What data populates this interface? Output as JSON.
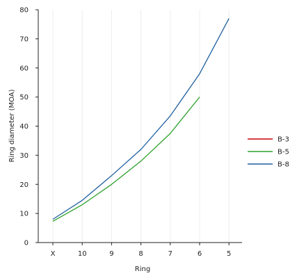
{
  "chart_data": {
    "type": "line",
    "xlabel": "Ring",
    "ylabel": "Ring diameter (MOA)",
    "categories": [
      "X",
      "10",
      "9",
      "8",
      "7",
      "6",
      "5"
    ],
    "ylim": [
      0,
      80
    ],
    "yticks": [
      0,
      10,
      20,
      30,
      40,
      50,
      60,
      70,
      80
    ],
    "grid": "vertical",
    "legend": "right",
    "series": [
      {
        "name": "B-3",
        "color": "#cc0000",
        "values": [
          null,
          null,
          null,
          null,
          null,
          null,
          null
        ]
      },
      {
        "name": "B-5",
        "color": "#2ca02c",
        "values": [
          7.3,
          13,
          20,
          28,
          37.5,
          50,
          null
        ]
      },
      {
        "name": "B-8",
        "color": "#1f5fa0",
        "values": [
          8,
          14.5,
          23,
          32,
          43.5,
          58,
          77
        ]
      }
    ]
  }
}
